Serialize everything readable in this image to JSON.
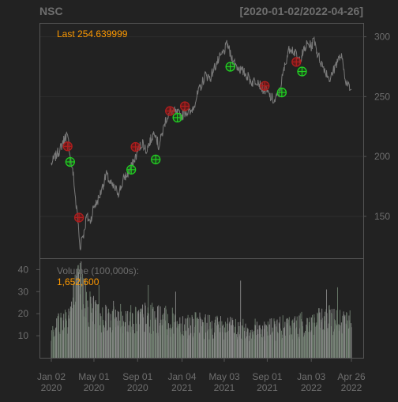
{
  "chart_data": {
    "type": "line",
    "symbol": "NSC",
    "date_range": "[2020-01-02/2022-04-26]",
    "last_label": "Last 254.639999",
    "price_axis": {
      "ylim": [
        115,
        305
      ],
      "ticks": [
        150,
        200,
        250,
        300
      ]
    },
    "volume_axis": {
      "ylim": [
        0,
        43
      ],
      "ticks": [
        10,
        20,
        30,
        40
      ]
    },
    "volume_label": "Volume (100,000s):",
    "volume_value": "1,652,600",
    "x_ticks": [
      {
        "top": "Jan 02",
        "bottom": "2020",
        "date": "2020-01-02"
      },
      {
        "top": "May 01",
        "bottom": "2020",
        "date": "2020-05-01"
      },
      {
        "top": "Sep 01",
        "bottom": "2020",
        "date": "2020-09-01"
      },
      {
        "top": "Jan 04",
        "bottom": "2021",
        "date": "2021-01-04"
      },
      {
        "top": "May 03",
        "bottom": "2021",
        "date": "2021-05-03"
      },
      {
        "top": "Sep 01",
        "bottom": "2021",
        "date": "2021-09-01"
      },
      {
        "top": "Jan 03",
        "bottom": "2022",
        "date": "2022-01-03"
      },
      {
        "top": "Apr 26",
        "bottom": "2022",
        "date": "2022-04-26"
      }
    ],
    "price_series": [
      [
        "2020-01-02",
        194
      ],
      [
        "2020-01-10",
        198
      ],
      [
        "2020-01-20",
        203
      ],
      [
        "2020-01-27",
        206
      ],
      [
        "2020-02-03",
        212
      ],
      [
        "2020-02-10",
        216
      ],
      [
        "2020-02-14",
        218
      ],
      [
        "2020-02-20",
        211
      ],
      [
        "2020-02-27",
        195
      ],
      [
        "2020-03-05",
        182
      ],
      [
        "2020-03-12",
        158
      ],
      [
        "2020-03-16",
        150
      ],
      [
        "2020-03-23",
        122
      ],
      [
        "2020-03-27",
        132
      ],
      [
        "2020-04-03",
        136
      ],
      [
        "2020-04-10",
        150
      ],
      [
        "2020-04-20",
        145
      ],
      [
        "2020-04-30",
        158
      ],
      [
        "2020-05-10",
        162
      ],
      [
        "2020-05-20",
        170
      ],
      [
        "2020-06-05",
        185
      ],
      [
        "2020-06-15",
        178
      ],
      [
        "2020-06-25",
        174
      ],
      [
        "2020-07-10",
        170
      ],
      [
        "2020-07-25",
        182
      ],
      [
        "2020-08-05",
        186
      ],
      [
        "2020-08-20",
        195
      ],
      [
        "2020-09-03",
        206
      ],
      [
        "2020-09-15",
        212
      ],
      [
        "2020-09-25",
        205
      ],
      [
        "2020-10-05",
        212
      ],
      [
        "2020-10-20",
        222
      ],
      [
        "2020-10-30",
        208
      ],
      [
        "2020-11-10",
        220
      ],
      [
        "2020-11-20",
        232
      ],
      [
        "2020-12-05",
        238
      ],
      [
        "2020-12-20",
        236
      ],
      [
        "2021-01-04",
        234
      ],
      [
        "2021-01-15",
        238
      ],
      [
        "2021-01-28",
        236
      ],
      [
        "2021-02-10",
        246
      ],
      [
        "2021-02-25",
        258
      ],
      [
        "2021-03-10",
        268
      ],
      [
        "2021-03-25",
        266
      ],
      [
        "2021-04-08",
        276
      ],
      [
        "2021-04-20",
        282
      ],
      [
        "2021-05-03",
        288
      ],
      [
        "2021-05-12",
        294
      ],
      [
        "2021-05-20",
        285
      ],
      [
        "2021-06-05",
        276
      ],
      [
        "2021-06-20",
        272
      ],
      [
        "2021-07-05",
        268
      ],
      [
        "2021-07-20",
        262
      ],
      [
        "2021-08-05",
        264
      ],
      [
        "2021-08-15",
        258
      ],
      [
        "2021-08-30",
        254
      ],
      [
        "2021-09-10",
        250
      ],
      [
        "2021-09-22",
        246
      ],
      [
        "2021-10-05",
        254
      ],
      [
        "2021-10-15",
        268
      ],
      [
        "2021-10-25",
        282
      ],
      [
        "2021-11-05",
        292
      ],
      [
        "2021-11-15",
        288
      ],
      [
        "2021-11-28",
        280
      ],
      [
        "2021-12-10",
        286
      ],
      [
        "2021-12-22",
        294
      ],
      [
        "2022-01-03",
        292
      ],
      [
        "2022-01-12",
        298
      ],
      [
        "2022-01-20",
        286
      ],
      [
        "2022-02-01",
        278
      ],
      [
        "2022-02-15",
        270
      ],
      [
        "2022-02-25",
        264
      ],
      [
        "2022-03-07",
        272
      ],
      [
        "2022-03-17",
        280
      ],
      [
        "2022-03-28",
        284
      ],
      [
        "2022-04-05",
        272
      ],
      [
        "2022-04-12",
        262
      ],
      [
        "2022-04-19",
        258
      ],
      [
        "2022-04-26",
        254.64
      ]
    ],
    "signals": {
      "sell": [
        [
          "2020-02-17",
          208.5
        ],
        [
          "2020-03-20",
          149
        ],
        [
          "2020-08-26",
          208
        ],
        [
          "2020-12-01",
          238
        ],
        [
          "2021-01-12",
          242
        ],
        [
          "2021-08-25",
          259
        ],
        [
          "2021-11-22",
          279
        ]
      ],
      "buy": [
        [
          "2020-02-24",
          195.5
        ],
        [
          "2020-08-14",
          189
        ],
        [
          "2020-10-22",
          197.5
        ],
        [
          "2020-12-22",
          232.5
        ],
        [
          "2021-05-20",
          275
        ],
        [
          "2021-10-12",
          253.5
        ],
        [
          "2021-12-08",
          271
        ]
      ]
    },
    "volume": {
      "base_levels": [
        [
          "2020-01-02",
          14
        ],
        [
          "2020-02-20",
          20
        ],
        [
          "2020-03-10",
          30
        ],
        [
          "2020-03-25",
          34
        ],
        [
          "2020-04-15",
          24
        ],
        [
          "2020-06-01",
          20
        ],
        [
          "2020-08-01",
          18
        ],
        [
          "2020-10-01",
          19
        ],
        [
          "2021-01-04",
          16
        ],
        [
          "2021-04-01",
          15
        ],
        [
          "2021-07-01",
          13
        ],
        [
          "2021-10-01",
          14
        ],
        [
          "2022-01-03",
          16
        ],
        [
          "2022-03-01",
          18
        ],
        [
          "2022-04-26",
          16.5
        ]
      ],
      "spikes": [
        [
          "2020-03-23",
          43
        ],
        [
          "2020-03-30",
          38
        ],
        [
          "2020-04-08",
          36
        ],
        [
          "2020-05-15",
          33
        ],
        [
          "2020-10-01",
          33
        ],
        [
          "2020-12-17",
          30
        ],
        [
          "2021-06-18",
          35
        ],
        [
          "2022-02-15",
          31
        ],
        [
          "2022-03-18",
          32
        ]
      ]
    }
  }
}
